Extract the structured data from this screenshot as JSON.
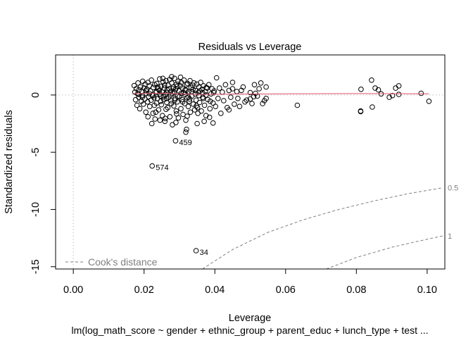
{
  "chart_data": {
    "type": "scatter",
    "title": "Residuals vs Leverage",
    "xlabel": "Leverage",
    "ylabel": "Standardized residuals",
    "subtitle": "lm(log_math_score ~ gender + ethnic_group + parent_educ + lunch_type + test ...",
    "xlim": [
      -0.005,
      0.105
    ],
    "ylim": [
      -15.2,
      3.5
    ],
    "x_ticks": [
      {
        "value": 0.0,
        "label": "0.00"
      },
      {
        "value": 0.02,
        "label": "0.02"
      },
      {
        "value": 0.04,
        "label": "0.04"
      },
      {
        "value": 0.06,
        "label": "0.06"
      },
      {
        "value": 0.08,
        "label": "0.08"
      },
      {
        "value": 0.1,
        "label": "0.10"
      }
    ],
    "y_ticks": [
      {
        "value": 0,
        "label": "0"
      },
      {
        "value": -5,
        "label": "-5"
      },
      {
        "value": -10,
        "label": "-10"
      },
      {
        "value": -15,
        "label": "-15"
      }
    ],
    "points": [
      [
        0.0172,
        0.82
      ],
      [
        0.0174,
        0.25
      ],
      [
        0.0176,
        -0.42
      ],
      [
        0.0178,
        0.55
      ],
      [
        0.018,
        -0.9
      ],
      [
        0.0182,
        0.1
      ],
      [
        0.0183,
        1.05
      ],
      [
        0.0185,
        -0.2
      ],
      [
        0.0186,
        0.45
      ],
      [
        0.0188,
        -1.2
      ],
      [
        0.019,
        0.7
      ],
      [
        0.0192,
        -0.55
      ],
      [
        0.0193,
        0.3
      ],
      [
        0.0195,
        -0.05
      ],
      [
        0.0196,
        1.2
      ],
      [
        0.0198,
        -0.8
      ],
      [
        0.02,
        0.6
      ],
      [
        0.0202,
        -0.35
      ],
      [
        0.0203,
        0.95
      ],
      [
        0.0205,
        -1.5
      ],
      [
        0.0206,
        0.15
      ],
      [
        0.0208,
        0.5
      ],
      [
        0.021,
        -0.6
      ],
      [
        0.0211,
        1.1
      ],
      [
        0.0213,
        -0.15
      ],
      [
        0.0215,
        0.8
      ],
      [
        0.0216,
        -1.0
      ],
      [
        0.0218,
        0.35
      ],
      [
        0.022,
        -0.45
      ],
      [
        0.0221,
        1.3
      ],
      [
        0.0223,
        0.0
      ],
      [
        0.0225,
        -1.6
      ],
      [
        0.0226,
        0.65
      ],
      [
        0.0228,
        -0.25
      ],
      [
        0.023,
        0.9
      ],
      [
        0.0231,
        -2.1
      ],
      [
        0.0233,
        0.2
      ],
      [
        0.0235,
        -0.7
      ],
      [
        0.0236,
        1.0
      ],
      [
        0.0238,
        -0.3
      ],
      [
        0.024,
        0.55
      ],
      [
        0.0241,
        -1.3
      ],
      [
        0.0243,
        0.4
      ],
      [
        0.0244,
        1.4
      ],
      [
        0.0246,
        -0.1
      ],
      [
        0.0248,
        0.75
      ],
      [
        0.0249,
        -0.85
      ],
      [
        0.0251,
        0.25
      ],
      [
        0.0252,
        -1.8
      ],
      [
        0.0254,
        1.15
      ],
      [
        0.0256,
        -0.4
      ],
      [
        0.0257,
        0.6
      ],
      [
        0.0259,
        -2.3
      ],
      [
        0.026,
        0.05
      ],
      [
        0.0262,
        1.25
      ],
      [
        0.0264,
        -0.65
      ],
      [
        0.0265,
        0.45
      ],
      [
        0.0267,
        -1.1
      ],
      [
        0.0268,
        0.85
      ],
      [
        0.027,
        -0.2
      ],
      [
        0.0272,
        1.35
      ],
      [
        0.0273,
        -1.9
      ],
      [
        0.0275,
        0.3
      ],
      [
        0.0276,
        -0.5
      ],
      [
        0.0278,
        1.05
      ],
      [
        0.028,
        -2.6
      ],
      [
        0.0281,
        0.15
      ],
      [
        0.0283,
        0.7
      ],
      [
        0.0284,
        -0.95
      ],
      [
        0.0286,
        1.45
      ],
      [
        0.0288,
        -0.3
      ],
      [
        0.0289,
        0.5
      ],
      [
        0.0291,
        -1.4
      ],
      [
        0.0292,
        0.95
      ],
      [
        0.0294,
        -0.6
      ],
      [
        0.0296,
        1.2
      ],
      [
        0.0297,
        -2.0
      ],
      [
        0.0299,
        0.35
      ],
      [
        0.03,
        -0.15
      ],
      [
        0.0302,
        0.8
      ],
      [
        0.0304,
        -1.2
      ],
      [
        0.0305,
        1.1
      ],
      [
        0.0307,
        -0.4
      ],
      [
        0.0308,
        0.6
      ],
      [
        0.031,
        -1.7
      ],
      [
        0.0312,
        0.2
      ],
      [
        0.0313,
        1.3
      ],
      [
        0.0315,
        -0.75
      ],
      [
        0.0316,
        0.45
      ],
      [
        0.0318,
        -2.2
      ],
      [
        0.032,
        0.9
      ],
      [
        0.0321,
        -0.25
      ],
      [
        0.0323,
        1.0
      ],
      [
        0.0325,
        -1.0
      ],
      [
        0.0326,
        0.3
      ],
      [
        0.0328,
        -0.55
      ],
      [
        0.033,
        1.25
      ],
      [
        0.0331,
        -1.5
      ],
      [
        0.0333,
        0.65
      ],
      [
        0.0335,
        -0.1
      ],
      [
        0.0337,
        0.85
      ],
      [
        0.0339,
        -0.8
      ],
      [
        0.0341,
        1.05
      ],
      [
        0.0343,
        -1.3
      ],
      [
        0.0345,
        0.4
      ],
      [
        0.0347,
        -0.45
      ],
      [
        0.0349,
        0.95
      ],
      [
        0.0351,
        -1.1
      ],
      [
        0.0353,
        0.2
      ],
      [
        0.0355,
        0.7
      ],
      [
        0.0357,
        -0.65
      ],
      [
        0.036,
        1.1
      ],
      [
        0.0362,
        -1.4
      ],
      [
        0.0364,
        0.5
      ],
      [
        0.0366,
        -0.2
      ],
      [
        0.0368,
        0.8
      ],
      [
        0.0371,
        -0.9
      ],
      [
        0.0373,
        0.3
      ],
      [
        0.0375,
        -1.8
      ],
      [
        0.0378,
        0.6
      ],
      [
        0.038,
        -0.4
      ],
      [
        0.0383,
        0.9
      ],
      [
        0.0386,
        -1.2
      ],
      [
        0.0389,
        0.1
      ],
      [
        0.0392,
        0.55
      ],
      [
        0.0395,
        -0.7
      ],
      [
        0.0398,
        0.35
      ],
      [
        0.0402,
        -1.0
      ],
      [
        0.0405,
        1.5
      ],
      [
        0.0409,
        -0.3
      ],
      [
        0.0413,
        0.6
      ],
      [
        0.0417,
        -1.6
      ],
      [
        0.0421,
        0.25
      ],
      [
        0.0425,
        -0.5
      ],
      [
        0.043,
        0.9
      ],
      [
        0.0435,
        -1.1
      ],
      [
        0.044,
        0.4
      ],
      [
        0.0445,
        -0.2
      ],
      [
        0.045,
        1.1
      ],
      [
        0.0455,
        -0.8
      ],
      [
        0.0462,
        0.3
      ],
      [
        0.047,
        -1.0
      ],
      [
        0.048,
        0.7
      ],
      [
        0.049,
        -0.45
      ],
      [
        0.05,
        0.2
      ],
      [
        0.0505,
        -0.75
      ],
      [
        0.0512,
        0.9
      ],
      [
        0.052,
        -0.1
      ],
      [
        0.053,
        1.05
      ],
      [
        0.054,
        -0.5
      ],
      [
        0.0185,
        0.05
      ],
      [
        0.0195,
        -0.2
      ],
      [
        0.0205,
        0.4
      ],
      [
        0.0215,
        0.12
      ],
      [
        0.0225,
        -0.05
      ],
      [
        0.0235,
        0.3
      ],
      [
        0.0245,
        0.1
      ],
      [
        0.0255,
        -0.15
      ],
      [
        0.0265,
        0.2
      ],
      [
        0.0275,
        0.0
      ],
      [
        0.0285,
        0.25
      ],
      [
        0.0295,
        -0.1
      ],
      [
        0.0305,
        0.15
      ],
      [
        0.0315,
        0.05
      ],
      [
        0.0325,
        -0.2
      ],
      [
        0.0335,
        0.3
      ],
      [
        0.0345,
        0.1
      ],
      [
        0.0355,
        -0.05
      ],
      [
        0.0365,
        0.2
      ],
      [
        0.0375,
        0.0
      ],
      [
        0.0282,
        0.55
      ],
      [
        0.0287,
        -0.45
      ],
      [
        0.0293,
        0.75
      ],
      [
        0.0277,
        -0.75
      ],
      [
        0.0271,
        0.55
      ],
      [
        0.0263,
        -0.3
      ],
      [
        0.0258,
        0.85
      ],
      [
        0.0247,
        -0.55
      ],
      [
        0.0239,
        0.7
      ],
      [
        0.0229,
        -0.9
      ],
      [
        0.0309,
        -0.6
      ],
      [
        0.0319,
        0.4
      ],
      [
        0.0329,
        -0.35
      ],
      [
        0.0338,
        0.5
      ],
      [
        0.0348,
        -0.95
      ],
      [
        0.0358,
        0.35
      ],
      [
        0.0367,
        -0.3
      ],
      [
        0.0376,
        0.65
      ],
      [
        0.0387,
        -0.55
      ],
      [
        0.0397,
        0.2
      ],
      [
        0.0278,
        1.6
      ],
      [
        0.0303,
        1.55
      ],
      [
        0.0253,
        1.45
      ],
      [
        0.0211,
        -1.9
      ],
      [
        0.0233,
        -1.5
      ],
      [
        0.0262,
        -1.25
      ],
      [
        0.0292,
        -1.65
      ],
      [
        0.0322,
        -1.85
      ],
      [
        0.0352,
        -1.6
      ],
      [
        0.037,
        -2.3
      ],
      [
        0.029,
        -2.4
      ],
      [
        0.026,
        -2.05
      ],
      [
        0.0222,
        -2.5
      ],
      [
        0.0245,
        -2.2
      ],
      [
        0.032,
        -3.0
      ],
      [
        0.0318,
        -3.25
      ],
      [
        0.035,
        -2.5
      ],
      [
        0.0395,
        -2.45
      ],
      [
        0.0385,
        -1.95
      ],
      [
        0.044,
        -1.3
      ],
      [
        0.045,
        0.55
      ],
      [
        0.0465,
        -0.3
      ],
      [
        0.0475,
        0.4
      ],
      [
        0.0485,
        -0.6
      ],
      [
        0.05,
        -0.35
      ],
      [
        0.051,
        -0.15
      ],
      [
        0.0515,
        0.15
      ],
      [
        0.0525,
        0.55
      ],
      [
        0.0535,
        -0.75
      ],
      [
        0.0545,
        0.7
      ],
      [
        0.0545,
        -0.3
      ],
      [
        0.0633,
        -0.9
      ],
      [
        0.0813,
        0.5
      ],
      [
        0.0812,
        -1.4
      ],
      [
        0.0812,
        -1.45
      ],
      [
        0.0843,
        1.3
      ],
      [
        0.0845,
        -1.05
      ],
      [
        0.0853,
        0.6
      ],
      [
        0.0862,
        0.45
      ],
      [
        0.087,
        0.1
      ],
      [
        0.0893,
        -0.2
      ],
      [
        0.0902,
        -0.05
      ],
      [
        0.0911,
        0.6
      ],
      [
        0.092,
        0.8
      ],
      [
        0.092,
        0.05
      ],
      [
        0.0983,
        0.15
      ],
      [
        0.1005,
        -0.55
      ],
      [
        0.0289,
        -4.0
      ],
      [
        0.0223,
        -6.2
      ],
      [
        0.0347,
        -13.6
      ]
    ],
    "labeled_points": [
      {
        "x": 0.0289,
        "y": -4.0,
        "label": "459"
      },
      {
        "x": 0.0223,
        "y": -6.2,
        "label": "574"
      },
      {
        "x": 0.0347,
        "y": -13.6,
        "label": "34"
      }
    ],
    "smooth_line": [
      [
        0.017,
        0.12
      ],
      [
        0.025,
        0.15
      ],
      [
        0.035,
        0.05
      ],
      [
        0.045,
        0.08
      ],
      [
        0.06,
        0.1
      ],
      [
        0.08,
        0.12
      ],
      [
        0.1005,
        0.1
      ]
    ],
    "cooks_contours": [
      {
        "label": "0.5",
        "points": [
          [
            0.0365,
            -15.2
          ],
          [
            0.045,
            -13.5
          ],
          [
            0.055,
            -12.0
          ],
          [
            0.065,
            -10.9
          ],
          [
            0.075,
            -10.0
          ],
          [
            0.085,
            -9.25
          ],
          [
            0.095,
            -8.6
          ],
          [
            0.1045,
            -8.1
          ]
        ]
      },
      {
        "label": "1",
        "points": [
          [
            0.0715,
            -15.2
          ],
          [
            0.08,
            -14.2
          ],
          [
            0.09,
            -13.3
          ],
          [
            0.1,
            -12.6
          ],
          [
            0.1045,
            -12.3
          ]
        ]
      }
    ],
    "legend": {
      "label": "Cook's distance",
      "position": "bottom-left"
    },
    "colors": {
      "points": "#000000",
      "smooth": "#df536b",
      "cooks": "#808080",
      "reference": "#bebebe"
    }
  }
}
